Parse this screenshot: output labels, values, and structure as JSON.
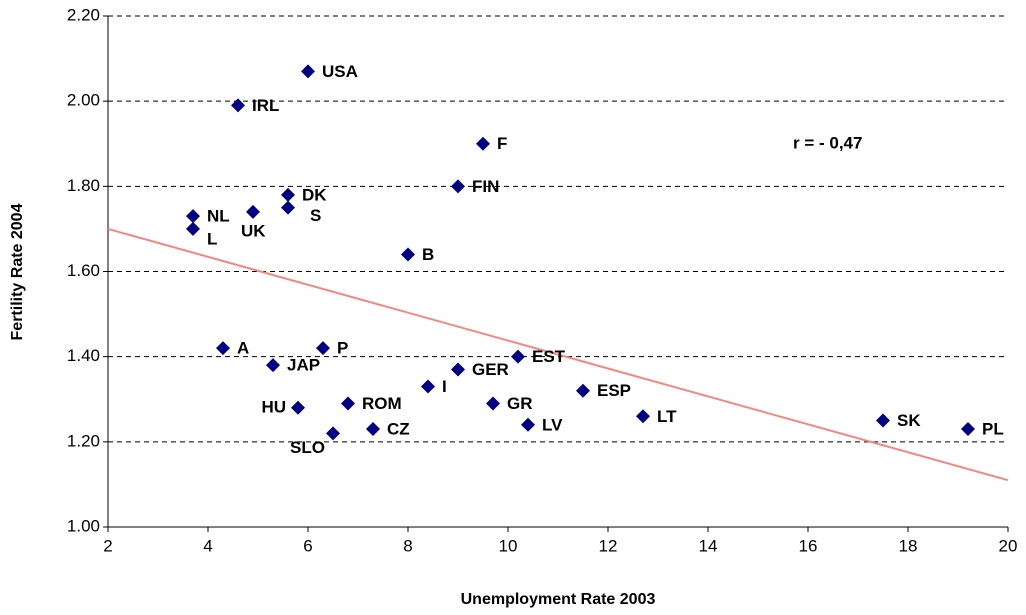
{
  "chart_data": {
    "type": "scatter",
    "xlabel": "Unemployment Rate 2003",
    "ylabel": "Fertility Rate 2004",
    "annotation": "r = - 0,47",
    "labels": [
      "USA",
      "IRL",
      "F",
      "FIN",
      "DK",
      "NL",
      "UK",
      "S",
      "L",
      "B",
      "A",
      "P",
      "JAP",
      "EST",
      "GER",
      "I",
      "ESP",
      "ROM",
      "GR",
      "HU",
      "LT",
      "LV",
      "SK",
      "PL",
      "CZ",
      "SLO"
    ],
    "x": [
      6.0,
      4.6,
      9.5,
      9.0,
      5.6,
      3.7,
      4.9,
      5.6,
      3.7,
      8.0,
      4.3,
      6.3,
      5.3,
      10.2,
      9.0,
      8.4,
      11.5,
      6.8,
      9.7,
      5.8,
      12.7,
      10.4,
      17.5,
      19.2,
      7.3,
      6.5
    ],
    "y": [
      2.07,
      1.99,
      1.9,
      1.8,
      1.78,
      1.73,
      1.74,
      1.75,
      1.7,
      1.64,
      1.42,
      1.42,
      1.38,
      1.4,
      1.37,
      1.33,
      1.32,
      1.29,
      1.29,
      1.28,
      1.26,
      1.24,
      1.25,
      1.23,
      1.23,
      1.22
    ],
    "color": "#000080",
    "trendline": {
      "x": [
        2,
        20
      ],
      "y": [
        1.7,
        1.11
      ],
      "color": "#f4877f"
    },
    "xlim": [
      2,
      20
    ],
    "xticks": [
      2,
      4,
      6,
      8,
      10,
      12,
      14,
      16,
      18,
      20
    ],
    "ylim": [
      1.0,
      2.2
    ],
    "yticks": [
      {
        "value": 1.0,
        "label": "1.00"
      },
      {
        "value": 1.2,
        "label": "1.20"
      },
      {
        "value": 1.4,
        "label": "1.40"
      },
      {
        "value": 1.6,
        "label": "1.60"
      },
      {
        "value": 1.8,
        "label": "1.80"
      },
      {
        "value": 2.0,
        "label": "2.00"
      },
      {
        "value": 2.2,
        "label": "2.20"
      }
    ],
    "grid": true
  }
}
